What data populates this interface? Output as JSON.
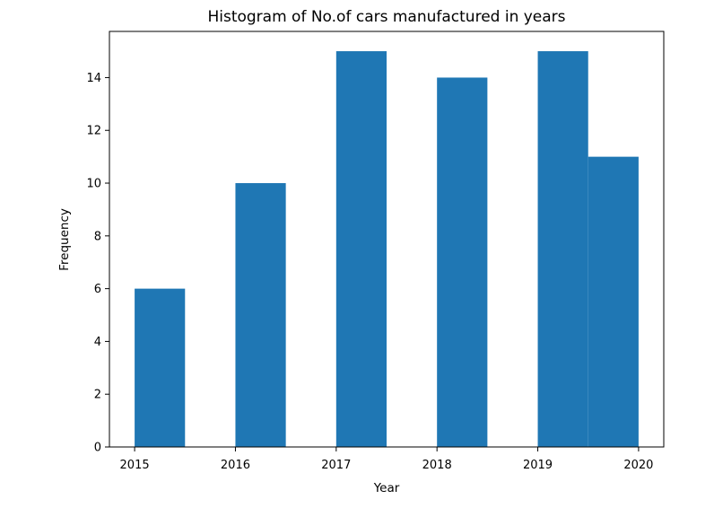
{
  "chart_data": {
    "type": "bar",
    "subtype": "histogram",
    "title": "Histogram of No.of cars manufactured in years",
    "xlabel": "Year",
    "ylabel": "Frequency",
    "xlim": [
      2014.75,
      2020.25
    ],
    "ylim": [
      0,
      15.75
    ],
    "bar_color": "#1f77b4",
    "grid": false,
    "legend": "none",
    "x_ticks": [
      2015,
      2016,
      2017,
      2018,
      2019,
      2020
    ],
    "x_tick_labels": [
      "2015",
      "2016",
      "2017",
      "2018",
      "2019",
      "2020"
    ],
    "y_ticks": [
      0,
      2,
      4,
      6,
      8,
      10,
      12,
      14
    ],
    "y_tick_labels": [
      "0",
      "2",
      "4",
      "6",
      "8",
      "10",
      "12",
      "14"
    ],
    "bins": [
      {
        "start": 2015.0,
        "end": 2015.5,
        "count": 6
      },
      {
        "start": 2015.5,
        "end": 2016.0,
        "count": 0
      },
      {
        "start": 2016.0,
        "end": 2016.5,
        "count": 10
      },
      {
        "start": 2016.5,
        "end": 2017.0,
        "count": 0
      },
      {
        "start": 2017.0,
        "end": 2017.5,
        "count": 15
      },
      {
        "start": 2017.5,
        "end": 2018.0,
        "count": 0
      },
      {
        "start": 2018.0,
        "end": 2018.5,
        "count": 14
      },
      {
        "start": 2018.5,
        "end": 2019.0,
        "count": 0
      },
      {
        "start": 2019.0,
        "end": 2019.5,
        "count": 15
      },
      {
        "start": 2019.5,
        "end": 2020.0,
        "count": 11
      }
    ]
  }
}
